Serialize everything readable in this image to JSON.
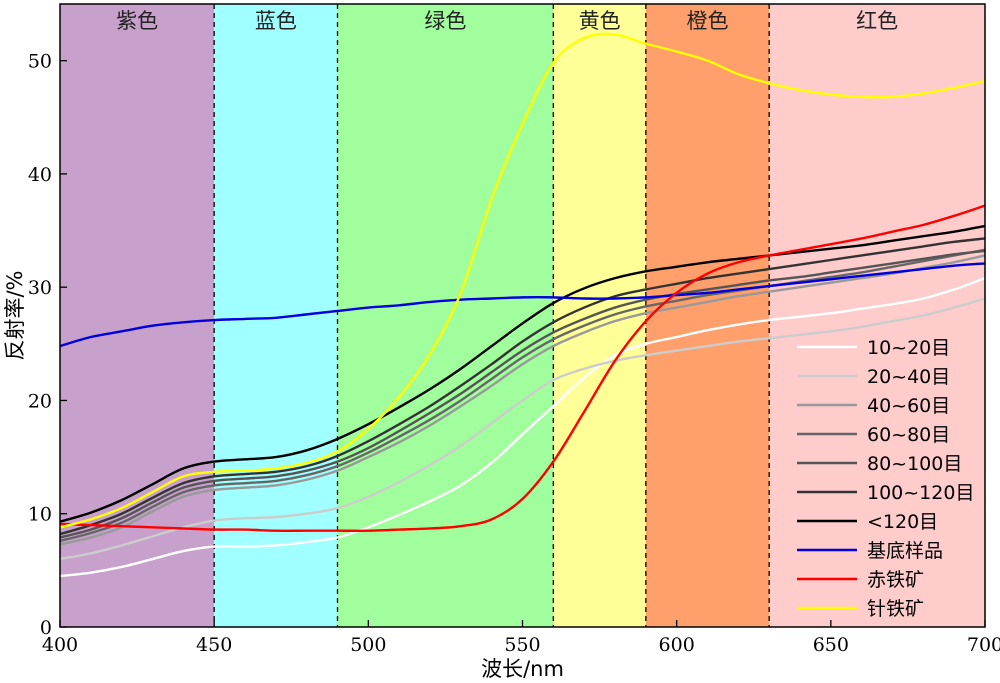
{
  "chart_data": {
    "type": "line",
    "xlabel": "波长/nm",
    "ylabel": "反射率/%",
    "xlim": [
      400,
      700
    ],
    "ylim": [
      0,
      55
    ],
    "xticks": [
      400,
      450,
      500,
      550,
      600,
      650,
      700
    ],
    "yticks": [
      0,
      10,
      20,
      30,
      40,
      50
    ],
    "grid": false,
    "legend_position": "bottom-right",
    "bands": [
      {
        "label": "紫色",
        "from": 400,
        "to": 450,
        "color": "#c8a0cc"
      },
      {
        "label": "蓝色",
        "from": 450,
        "to": 490,
        "color": "#a0ffff"
      },
      {
        "label": "绿色",
        "from": 490,
        "to": 560,
        "color": "#a0ff9c"
      },
      {
        "label": "黄色",
        "from": 560,
        "to": 590,
        "color": "#ffff98"
      },
      {
        "label": "橙色",
        "from": 590,
        "to": 630,
        "color": "#ffa06c"
      },
      {
        "label": "红色",
        "from": 630,
        "to": 700,
        "color": "#ffcccc"
      }
    ],
    "x": [
      400,
      410,
      420,
      430,
      440,
      450,
      460,
      470,
      480,
      490,
      500,
      510,
      520,
      530,
      540,
      550,
      560,
      570,
      580,
      590,
      600,
      610,
      620,
      630,
      640,
      650,
      660,
      670,
      680,
      690,
      700
    ],
    "series": [
      {
        "name": "10~20目",
        "color": "#ffffff",
        "values": [
          4.5,
          4.8,
          5.3,
          6.0,
          6.7,
          7.1,
          7.1,
          7.2,
          7.5,
          7.9,
          8.8,
          9.9,
          11.1,
          12.5,
          14.5,
          17.0,
          19.5,
          22.0,
          24.0,
          25.0,
          25.6,
          26.2,
          26.7,
          27.1,
          27.4,
          27.7,
          28.1,
          28.5,
          29.0,
          29.8,
          30.8
        ]
      },
      {
        "name": "20~40目",
        "color": "#cccccc",
        "values": [
          6.0,
          6.5,
          7.2,
          8.0,
          8.8,
          9.4,
          9.6,
          9.7,
          10.0,
          10.5,
          11.5,
          12.8,
          14.3,
          16.0,
          18.0,
          20.0,
          21.8,
          22.8,
          23.5,
          24.0,
          24.4,
          24.8,
          25.2,
          25.5,
          25.8,
          26.1,
          26.5,
          27.0,
          27.5,
          28.2,
          29.0
        ]
      },
      {
        "name": "40~60目",
        "color": "#999999",
        "values": [
          7.3,
          7.9,
          8.8,
          10.2,
          11.5,
          12.1,
          12.3,
          12.5,
          13.0,
          13.8,
          15.0,
          16.3,
          17.8,
          19.5,
          21.3,
          23.2,
          24.8,
          26.0,
          27.0,
          27.7,
          28.2,
          28.7,
          29.2,
          29.6,
          30.0,
          30.4,
          30.8,
          31.2,
          31.7,
          32.2,
          32.8
        ]
      },
      {
        "name": "60~80目",
        "color": "#666666",
        "values": [
          7.6,
          8.3,
          9.2,
          10.6,
          11.9,
          12.5,
          12.7,
          12.9,
          13.4,
          14.2,
          15.4,
          16.8,
          18.3,
          20.0,
          21.9,
          23.8,
          25.4,
          26.6,
          27.6,
          28.3,
          28.8,
          29.3,
          29.7,
          30.1,
          30.5,
          30.9,
          31.3,
          31.8,
          32.3,
          32.8,
          33.3
        ]
      },
      {
        "name": "80~100目",
        "color": "#555555",
        "values": [
          7.9,
          8.6,
          9.6,
          11.0,
          12.3,
          12.9,
          13.1,
          13.3,
          13.8,
          14.6,
          15.8,
          17.3,
          18.9,
          20.6,
          22.5,
          24.4,
          26.0,
          27.2,
          28.2,
          28.9,
          29.4,
          29.8,
          30.2,
          30.6,
          30.9,
          31.3,
          31.7,
          32.1,
          32.5,
          32.9,
          33.2
        ]
      },
      {
        "name": "100~120目",
        "color": "#333333",
        "values": [
          8.2,
          9.0,
          10.0,
          11.4,
          12.7,
          13.3,
          13.5,
          13.7,
          14.2,
          15.1,
          16.4,
          17.9,
          19.5,
          21.3,
          23.2,
          25.2,
          26.9,
          28.2,
          29.2,
          29.8,
          30.3,
          30.8,
          31.2,
          31.6,
          32.0,
          32.4,
          32.8,
          33.2,
          33.6,
          34.0,
          34.3
        ]
      },
      {
        "name": "<120目",
        "color": "#000000",
        "values": [
          9.3,
          10.1,
          11.2,
          12.6,
          14.0,
          14.6,
          14.8,
          15.0,
          15.6,
          16.6,
          17.9,
          19.4,
          21.0,
          22.8,
          24.8,
          26.8,
          28.6,
          29.9,
          30.8,
          31.4,
          31.8,
          32.2,
          32.5,
          32.8,
          33.1,
          33.4,
          33.7,
          34.1,
          34.5,
          34.9,
          35.4
        ]
      },
      {
        "name": "基底样品",
        "color": "#0000dd",
        "values": [
          24.8,
          25.6,
          26.1,
          26.6,
          26.9,
          27.1,
          27.2,
          27.3,
          27.6,
          27.9,
          28.2,
          28.4,
          28.7,
          28.9,
          29.0,
          29.1,
          29.1,
          29.0,
          29.0,
          29.1,
          29.3,
          29.5,
          29.8,
          30.1,
          30.4,
          30.7,
          31.0,
          31.3,
          31.6,
          31.9,
          32.1
        ]
      },
      {
        "name": "赤铁矿",
        "color": "#ff0000",
        "values": [
          9.1,
          9.0,
          8.9,
          8.8,
          8.7,
          8.6,
          8.6,
          8.5,
          8.5,
          8.5,
          8.5,
          8.6,
          8.7,
          8.9,
          9.5,
          11.3,
          14.6,
          19.0,
          23.5,
          27.0,
          29.5,
          31.2,
          32.2,
          32.8,
          33.3,
          33.8,
          34.3,
          34.9,
          35.5,
          36.3,
          37.2
        ]
      },
      {
        "name": "针铁矿",
        "color": "#ffff00",
        "values": [
          8.8,
          9.5,
          10.5,
          11.9,
          13.3,
          13.7,
          13.8,
          14.0,
          14.5,
          15.5,
          17.5,
          20.3,
          24.1,
          29.5,
          37.8,
          44.4,
          49.8,
          52.0,
          52.3,
          51.5,
          50.8,
          50.0,
          48.8,
          48.0,
          47.4,
          47.0,
          46.8,
          46.8,
          47.1,
          47.6,
          48.2
        ]
      }
    ]
  }
}
